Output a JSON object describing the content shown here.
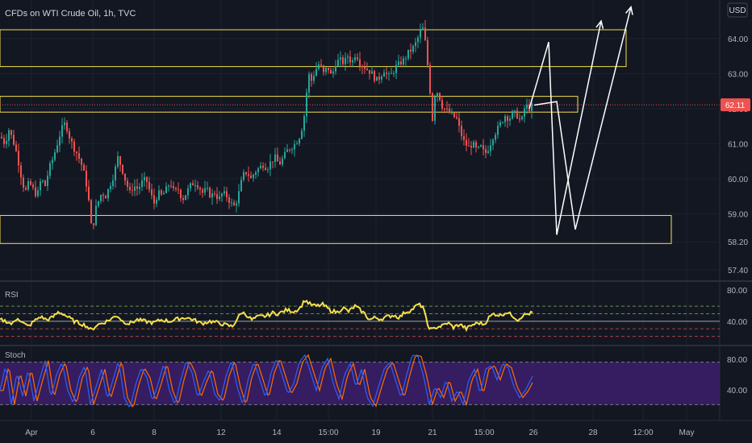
{
  "header": {
    "title": "CFDs on WTI Crude Oil, 1h, TVC",
    "currency": "USD"
  },
  "price_axis": {
    "ticks": [
      "64.00",
      "63.00",
      "62.00",
      "61.00",
      "60.00",
      "59.00",
      "58.20",
      "57.40"
    ],
    "current_price": "62.11"
  },
  "time_axis": {
    "labels": [
      "Apr",
      "6",
      "8",
      "12",
      "14",
      "15:00",
      "19",
      "21",
      "15:00",
      "26",
      "28",
      "12:00",
      "May"
    ]
  },
  "rsi": {
    "label": "RSI",
    "levels": [
      "80.00",
      "40.00"
    ]
  },
  "stoch": {
    "label": "Stoch",
    "levels": [
      "80.00",
      "40.00"
    ]
  },
  "colors": {
    "background": "#131722",
    "up_candle": "#26a69a",
    "down_candle": "#ef5350",
    "zone_border": "#f5e04a",
    "rsi_line": "#f5e04a",
    "stoch_k": "#2962ff",
    "stoch_d": "#ff6d00",
    "stoch_band": "#3d1d6b",
    "projection": "#ffffff",
    "price_label": "#ef5350"
  },
  "chart_data": {
    "type": "candlestick",
    "symbol": "CFDs on WTI Crude Oil",
    "timeframe": "1h",
    "source": "TVC",
    "current_price": 62.11,
    "ylim": [
      57.1,
      65.1
    ],
    "price_path": [
      [
        0,
        61.2
      ],
      [
        5,
        61.0
      ],
      [
        10,
        61.4
      ],
      [
        15,
        61.1
      ],
      [
        20,
        60.7
      ],
      [
        25,
        60.1
      ],
      [
        30,
        59.6
      ],
      [
        35,
        59.9
      ],
      [
        40,
        59.7
      ],
      [
        45,
        59.5
      ],
      [
        50,
        60.0
      ],
      [
        55,
        59.8
      ],
      [
        60,
        60.3
      ],
      [
        65,
        60.6
      ],
      [
        70,
        61.0
      ],
      [
        75,
        61.4
      ],
      [
        80,
        61.6
      ],
      [
        85,
        61.2
      ],
      [
        90,
        60.9
      ],
      [
        95,
        60.7
      ],
      [
        100,
        60.4
      ],
      [
        105,
        60.0
      ],
      [
        110,
        59.2
      ],
      [
        113,
        58.4
      ],
      [
        117,
        59.1
      ],
      [
        120,
        59.3
      ],
      [
        125,
        59.6
      ],
      [
        130,
        59.5
      ],
      [
        135,
        59.8
      ],
      [
        140,
        60.1
      ],
      [
        145,
        60.6
      ],
      [
        150,
        60.3
      ],
      [
        155,
        59.9
      ],
      [
        160,
        59.6
      ],
      [
        165,
        59.8
      ],
      [
        170,
        59.7
      ],
      [
        175,
        59.9
      ],
      [
        180,
        60.0
      ],
      [
        185,
        59.6
      ],
      [
        190,
        59.3
      ],
      [
        195,
        59.6
      ],
      [
        200,
        59.5
      ],
      [
        205,
        59.7
      ],
      [
        210,
        59.9
      ],
      [
        215,
        59.6
      ],
      [
        220,
        59.7
      ],
      [
        225,
        59.4
      ],
      [
        230,
        59.6
      ],
      [
        235,
        59.8
      ],
      [
        240,
        59.9
      ],
      [
        245,
        59.8
      ],
      [
        250,
        59.6
      ],
      [
        255,
        59.7
      ],
      [
        260,
        59.5
      ],
      [
        265,
        59.6
      ],
      [
        270,
        59.4
      ],
      [
        275,
        59.6
      ],
      [
        280,
        59.5
      ],
      [
        285,
        59.3
      ],
      [
        290,
        59.2
      ],
      [
        295,
        59.6
      ],
      [
        300,
        60.1
      ],
      [
        305,
        60.2
      ],
      [
        310,
        60.0
      ],
      [
        315,
        60.2
      ],
      [
        320,
        60.3
      ],
      [
        325,
        60.4
      ],
      [
        330,
        60.3
      ],
      [
        335,
        60.5
      ],
      [
        340,
        60.6
      ],
      [
        345,
        60.4
      ],
      [
        350,
        60.6
      ],
      [
        355,
        60.8
      ],
      [
        360,
        60.9
      ],
      [
        365,
        61.0
      ],
      [
        370,
        61.2
      ],
      [
        375,
        61.6
      ],
      [
        378,
        62.2
      ],
      [
        381,
        63.0
      ],
      [
        385,
        62.8
      ],
      [
        390,
        63.1
      ],
      [
        395,
        63.3
      ],
      [
        400,
        63.0
      ],
      [
        405,
        63.2
      ],
      [
        410,
        62.9
      ],
      [
        415,
        63.3
      ],
      [
        420,
        63.4
      ],
      [
        425,
        63.3
      ],
      [
        430,
        63.5
      ],
      [
        435,
        63.3
      ],
      [
        440,
        63.6
      ],
      [
        445,
        63.3
      ],
      [
        450,
        63.2
      ],
      [
        455,
        63.1
      ],
      [
        460,
        63.0
      ],
      [
        465,
        62.8
      ],
      [
        470,
        62.9
      ],
      [
        475,
        63.1
      ],
      [
        480,
        62.9
      ],
      [
        485,
        63.0
      ],
      [
        490,
        63.2
      ],
      [
        495,
        63.3
      ],
      [
        500,
        63.4
      ],
      [
        505,
        63.6
      ],
      [
        510,
        63.7
      ],
      [
        515,
        63.9
      ],
      [
        520,
        64.2
      ],
      [
        524,
        64.3
      ],
      [
        528,
        63.5
      ],
      [
        532,
        62.5
      ],
      [
        535,
        61.7
      ],
      [
        538,
        62.4
      ],
      [
        542,
        62.5
      ],
      [
        546,
        62.1
      ],
      [
        550,
        62.0
      ],
      [
        555,
        61.9
      ],
      [
        560,
        61.8
      ],
      [
        565,
        61.7
      ],
      [
        570,
        61.3
      ],
      [
        575,
        61.0
      ],
      [
        580,
        60.9
      ],
      [
        585,
        61.0
      ],
      [
        590,
        60.8
      ],
      [
        595,
        60.9
      ],
      [
        600,
        60.7
      ],
      [
        605,
        60.9
      ],
      [
        610,
        61.2
      ],
      [
        615,
        61.4
      ],
      [
        620,
        61.6
      ],
      [
        625,
        61.8
      ],
      [
        630,
        61.7
      ],
      [
        635,
        61.9
      ],
      [
        640,
        61.8
      ],
      [
        645,
        61.6
      ],
      [
        650,
        62.1
      ],
      [
        655,
        62.0
      ],
      [
        659,
        62.11
      ]
    ],
    "zones": [
      {
        "high": 64.25,
        "low": 63.2,
        "x_end": 776
      },
      {
        "high": 62.35,
        "low": 61.9,
        "x_end": 716
      },
      {
        "high": 58.95,
        "low": 58.15,
        "x_end": 832
      }
    ],
    "projection_paths": [
      [
        [
          656,
          62.0
        ],
        [
          680,
          63.9
        ],
        [
          690,
          58.4
        ],
        [
          745,
          64.5
        ]
      ],
      [
        [
          662,
          62.1
        ],
        [
          690,
          62.2
        ],
        [
          713,
          58.55
        ],
        [
          782,
          64.9
        ]
      ]
    ],
    "rsi": {
      "range": [
        20,
        100
      ],
      "upper_band": 70,
      "lower_band": 30,
      "series_path": [
        [
          0,
          52
        ],
        [
          8,
          50
        ],
        [
          15,
          46
        ],
        [
          22,
          55
        ],
        [
          28,
          48
        ],
        [
          35,
          43
        ],
        [
          42,
          50
        ],
        [
          50,
          56
        ],
        [
          58,
          52
        ],
        [
          65,
          55
        ],
        [
          72,
          62
        ],
        [
          78,
          60
        ],
        [
          85,
          55
        ],
        [
          92,
          50
        ],
        [
          100,
          47
        ],
        [
          107,
          44
        ],
        [
          113,
          38
        ],
        [
          120,
          45
        ],
        [
          128,
          48
        ],
        [
          136,
          52
        ],
        [
          145,
          58
        ],
        [
          152,
          50
        ],
        [
          160,
          47
        ],
        [
          170,
          52
        ],
        [
          180,
          50
        ],
        [
          190,
          48
        ],
        [
          200,
          52
        ],
        [
          210,
          50
        ],
        [
          220,
          53
        ],
        [
          230,
          55
        ],
        [
          240,
          52
        ],
        [
          250,
          47
        ],
        [
          260,
          50
        ],
        [
          270,
          48
        ],
        [
          280,
          45
        ],
        [
          288,
          43
        ],
        [
          295,
          55
        ],
        [
          300,
          62
        ],
        [
          306,
          58
        ],
        [
          312,
          52
        ],
        [
          320,
          56
        ],
        [
          330,
          57
        ],
        [
          338,
          61
        ],
        [
          345,
          60
        ],
        [
          355,
          65
        ],
        [
          365,
          63
        ],
        [
          372,
          68
        ],
        [
          378,
          78
        ],
        [
          385,
          72
        ],
        [
          392,
          70
        ],
        [
          400,
          72
        ],
        [
          410,
          64
        ],
        [
          418,
          62
        ],
        [
          425,
          68
        ],
        [
          432,
          63
        ],
        [
          440,
          70
        ],
        [
          445,
          66
        ],
        [
          452,
          60
        ],
        [
          458,
          52
        ],
        [
          465,
          55
        ],
        [
          472,
          53
        ],
        [
          480,
          56
        ],
        [
          488,
          58
        ],
        [
          495,
          55
        ],
        [
          502,
          62
        ],
        [
          510,
          65
        ],
        [
          518,
          72
        ],
        [
          524,
          70
        ],
        [
          530,
          45
        ],
        [
          535,
          38
        ],
        [
          540,
          42
        ],
        [
          548,
          44
        ],
        [
          555,
          48
        ],
        [
          562,
          42
        ],
        [
          570,
          46
        ],
        [
          578,
          40
        ],
        [
          585,
          45
        ],
        [
          593,
          48
        ],
        [
          600,
          46
        ],
        [
          606,
          55
        ],
        [
          612,
          60
        ],
        [
          620,
          58
        ],
        [
          628,
          62
        ],
        [
          636,
          57
        ],
        [
          642,
          52
        ],
        [
          648,
          58
        ],
        [
          655,
          60
        ],
        [
          660,
          61
        ]
      ]
    },
    "stochastic": {
      "range": [
        0,
        100
      ],
      "upper_band": 80,
      "lower_band": 20,
      "k_path": [
        [
          0,
          40
        ],
        [
          7,
          75
        ],
        [
          14,
          20
        ],
        [
          21,
          65
        ],
        [
          28,
          32
        ],
        [
          35,
          70
        ],
        [
          42,
          25
        ],
        [
          49,
          55
        ],
        [
          56,
          82
        ],
        [
          63,
          30
        ],
        [
          70,
          62
        ],
        [
          77,
          80
        ],
        [
          84,
          40
        ],
        [
          91,
          22
        ],
        [
          98,
          58
        ],
        [
          105,
          75
        ],
        [
          112,
          20
        ],
        [
          119,
          45
        ],
        [
          126,
          70
        ],
        [
          133,
          28
        ],
        [
          140,
          55
        ],
        [
          147,
          82
        ],
        [
          154,
          30
        ],
        [
          161,
          15
        ],
        [
          168,
          48
        ],
        [
          175,
          72
        ],
        [
          182,
          58
        ],
        [
          189,
          25
        ],
        [
          196,
          50
        ],
        [
          203,
          78
        ],
        [
          210,
          40
        ],
        [
          217,
          20
        ],
        [
          224,
          55
        ],
        [
          231,
          82
        ],
        [
          238,
          65
        ],
        [
          245,
          30
        ],
        [
          252,
          52
        ],
        [
          259,
          70
        ],
        [
          266,
          35
        ],
        [
          273,
          25
        ],
        [
          280,
          60
        ],
        [
          287,
          82
        ],
        [
          294,
          45
        ],
        [
          301,
          20
        ],
        [
          308,
          58
        ],
        [
          315,
          80
        ],
        [
          322,
          55
        ],
        [
          329,
          30
        ],
        [
          336,
          65
        ],
        [
          343,
          85
        ],
        [
          350,
          60
        ],
        [
          357,
          35
        ],
        [
          364,
          50
        ],
        [
          371,
          80
        ],
        [
          378,
          90
        ],
        [
          385,
          65
        ],
        [
          392,
          40
        ],
        [
          399,
          72
        ],
        [
          406,
          85
        ],
        [
          413,
          50
        ],
        [
          420,
          28
        ],
        [
          427,
          62
        ],
        [
          434,
          78
        ],
        [
          441,
          45
        ],
        [
          448,
          70
        ],
        [
          455,
          30
        ],
        [
          462,
          18
        ],
        [
          469,
          45
        ],
        [
          476,
          70
        ],
        [
          483,
          80
        ],
        [
          490,
          55
        ],
        [
          497,
          30
        ],
        [
          504,
          62
        ],
        [
          511,
          90
        ],
        [
          518,
          88
        ],
        [
          525,
          60
        ],
        [
          532,
          20
        ],
        [
          539,
          45
        ],
        [
          546,
          30
        ],
        [
          553,
          55
        ],
        [
          560,
          25
        ],
        [
          567,
          40
        ],
        [
          574,
          20
        ],
        [
          581,
          55
        ],
        [
          588,
          70
        ],
        [
          595,
          35
        ],
        [
          602,
          70
        ],
        [
          609,
          75
        ],
        [
          616,
          55
        ],
        [
          623,
          78
        ],
        [
          630,
          72
        ],
        [
          637,
          45
        ],
        [
          644,
          30
        ],
        [
          651,
          40
        ],
        [
          660,
          60
        ]
      ]
    }
  }
}
